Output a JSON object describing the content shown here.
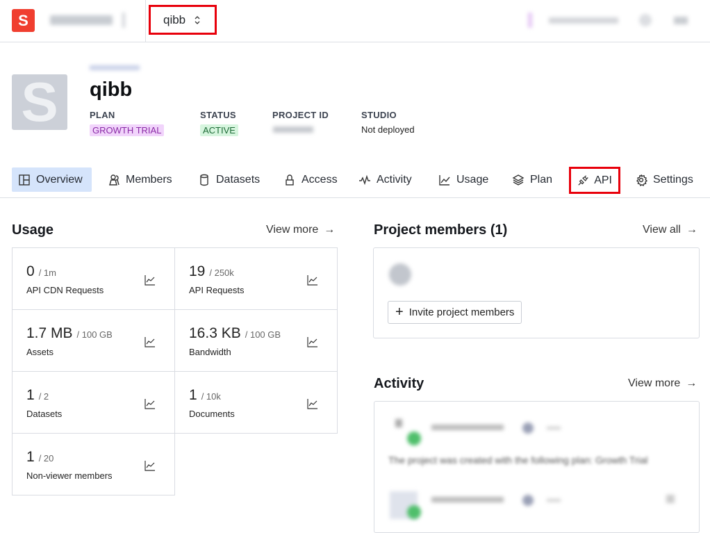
{
  "topbar": {
    "logo_letter": "S",
    "project_name": "qibb"
  },
  "project": {
    "avatar_letter": "S",
    "title": "qibb",
    "plan_label": "PLAN",
    "plan_value": "GROWTH TRIAL",
    "status_label": "STATUS",
    "status_value": "ACTIVE",
    "id_label": "PROJECT ID",
    "studio_label": "STUDIO",
    "studio_value": "Not deployed"
  },
  "tabs": [
    {
      "label": "Overview",
      "icon": "layout-icon",
      "active": true
    },
    {
      "label": "Members",
      "icon": "users-icon"
    },
    {
      "label": "Datasets",
      "icon": "database-icon"
    },
    {
      "label": "Access",
      "icon": "lock-icon"
    },
    {
      "label": "Activity",
      "icon": "activity-icon"
    },
    {
      "label": "Usage",
      "icon": "chart-icon"
    },
    {
      "label": "Plan",
      "icon": "stack-icon"
    },
    {
      "label": "API",
      "icon": "plug-icon",
      "highlighted": true
    },
    {
      "label": "Settings",
      "icon": "gear-icon"
    }
  ],
  "usage": {
    "title": "Usage",
    "view_more": "View more",
    "items": [
      {
        "value": "0",
        "limit": "/  1m",
        "label": "API CDN Requests"
      },
      {
        "value": "19",
        "limit": "/  250k",
        "label": "API Requests"
      },
      {
        "value": "1.7 MB",
        "limit": "/  100 GB",
        "label": "Assets"
      },
      {
        "value": "16.3 KB",
        "limit": "/  100 GB",
        "label": "Bandwidth"
      },
      {
        "value": "1",
        "limit": "/  2",
        "label": "Datasets"
      },
      {
        "value": "1",
        "limit": "/  10k",
        "label": "Documents"
      },
      {
        "value": "1",
        "limit": "/  20",
        "label": "Non-viewer members"
      }
    ]
  },
  "members": {
    "title": "Project members (1)",
    "view_all": "View all",
    "invite": "Invite project members"
  },
  "activity": {
    "title": "Activity",
    "view_more": "View more",
    "text": "The project was created with the following plan: Growth Trial"
  },
  "colors": {
    "accent": "#f03e2f",
    "highlight": "#e8000b",
    "plan_badge_bg": "#f1d4fb",
    "plan_badge_fg": "#8a2aa6",
    "status_badge_bg": "#d6f5de",
    "status_badge_fg": "#1d6b36",
    "active_tab_bg": "#d5e4fb"
  }
}
